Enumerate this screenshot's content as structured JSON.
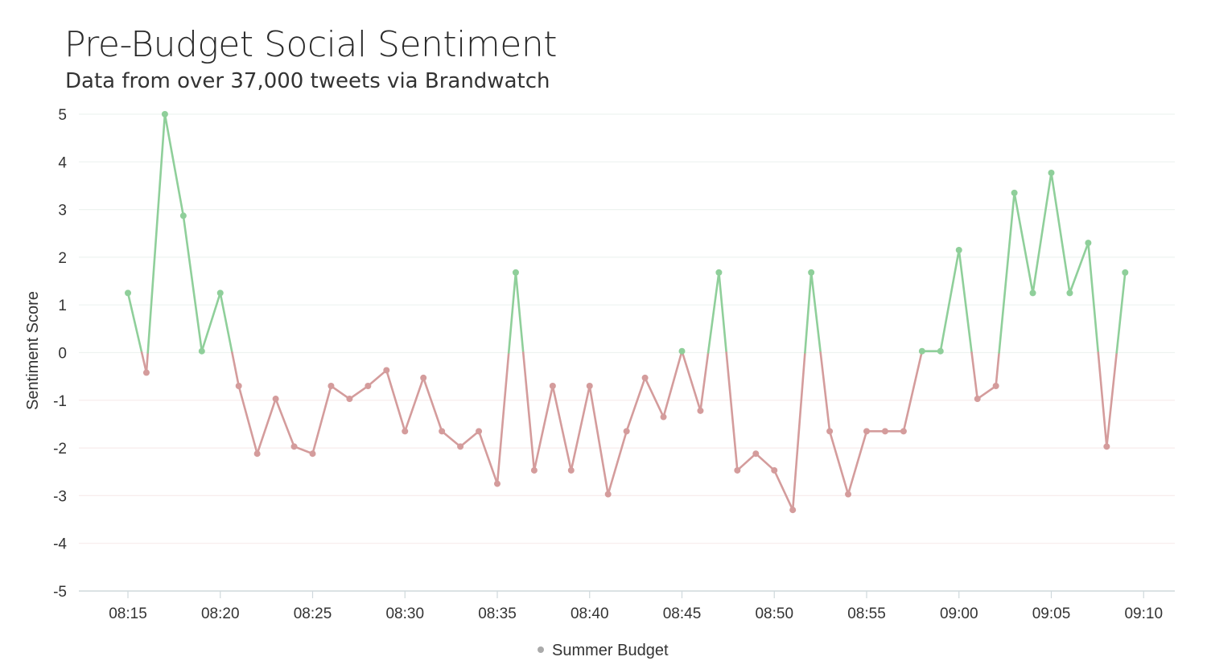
{
  "chart_data": {
    "type": "line",
    "title": "Pre-Budget Social Sentiment",
    "subtitle": "Data from over 37,000 tweets via Brandwatch",
    "xlabel": "",
    "ylabel": "Sentiment Score",
    "ylim": [
      -5,
      5
    ],
    "y_ticks": [
      "5",
      "4",
      "3",
      "2",
      "1",
      "0",
      "-1",
      "-2",
      "-3",
      "-4",
      "-5"
    ],
    "x_ticks": [
      "08:15",
      "08:20",
      "08:25",
      "08:30",
      "08:35",
      "08:40",
      "08:45",
      "08:50",
      "08:55",
      "09:00",
      "09:05",
      "09:10"
    ],
    "grid": true,
    "legend_position": "bottom-center",
    "colors": {
      "positive": "#8fcf9a",
      "negative": "#d49c9c",
      "legend_marker": "#aaaaaa"
    },
    "series": [
      {
        "name": "Summer Budget",
        "x": [
          "08:15",
          "08:16",
          "08:17",
          "08:18",
          "08:19",
          "08:20",
          "08:21",
          "08:22",
          "08:23",
          "08:24",
          "08:25",
          "08:26",
          "08:27",
          "08:28",
          "08:29",
          "08:30",
          "08:31",
          "08:32",
          "08:33",
          "08:34",
          "08:35",
          "08:36",
          "08:37",
          "08:38",
          "08:39",
          "08:40",
          "08:41",
          "08:42",
          "08:43",
          "08:44",
          "08:45",
          "08:46",
          "08:47",
          "08:48",
          "08:49",
          "08:50",
          "08:51",
          "08:52",
          "08:53",
          "08:54",
          "08:55",
          "08:56",
          "08:57",
          "08:58",
          "08:59",
          "09:00",
          "09:01",
          "09:02",
          "09:03",
          "09:04",
          "09:05",
          "09:06",
          "09:07",
          "09:08",
          "09:09"
        ],
        "values": [
          1.25,
          -0.42,
          5.0,
          2.87,
          0.03,
          1.25,
          -0.7,
          -2.12,
          -0.97,
          -1.97,
          -2.12,
          -0.7,
          -0.97,
          -0.7,
          -0.37,
          -1.65,
          -0.53,
          -1.65,
          -1.97,
          -1.65,
          -2.75,
          1.68,
          -2.47,
          -0.7,
          -2.47,
          -0.7,
          -2.97,
          -1.65,
          -0.53,
          -1.35,
          0.03,
          -1.22,
          1.68,
          -2.47,
          -2.12,
          -2.47,
          -3.3,
          1.68,
          -1.65,
          -2.97,
          -1.65,
          -1.65,
          -1.65,
          0.03,
          0.03,
          2.15,
          -0.97,
          -0.7,
          3.35,
          1.25,
          3.77,
          1.25,
          2.3,
          -1.97,
          1.68
        ]
      }
    ]
  }
}
